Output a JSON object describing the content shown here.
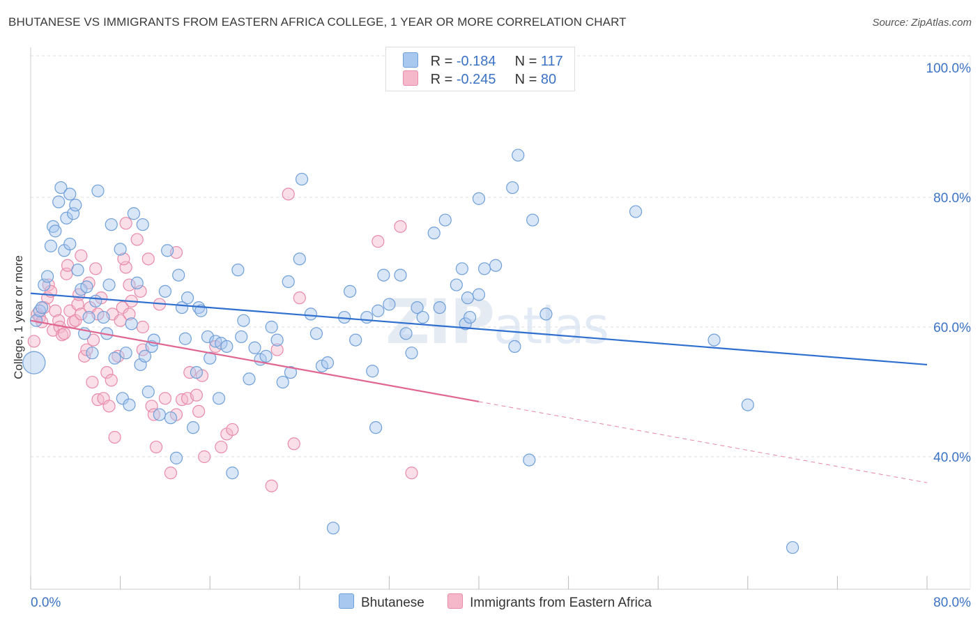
{
  "header": {
    "title": "BHUTANESE VS IMMIGRANTS FROM EASTERN AFRICA COLLEGE, 1 YEAR OR MORE CORRELATION CHART",
    "source": "Source: ZipAtlas.com"
  },
  "watermark": {
    "bold": "ZIP",
    "thin": "atlas"
  },
  "legend": {
    "rows": [
      {
        "r_label": "R = ",
        "r_value": "-0.184",
        "n_label": "N = ",
        "n_value": "117"
      },
      {
        "r_label": "R = ",
        "r_value": "-0.245",
        "n_label": "N = ",
        "n_value": "80"
      }
    ]
  },
  "bottom_legend": [
    "Bhutanese",
    "Immigrants from Eastern Africa"
  ],
  "colors": {
    "blue_fill": "#a9c8ef",
    "blue_stroke": "#6f9fd8",
    "blue_line": "#2f6fcf",
    "pink_fill": "#f5b8cb",
    "pink_stroke": "#e88aa8",
    "pink_line": "#e0668f",
    "tick_label": "#3b72c4"
  },
  "chart_data": {
    "type": "scatter",
    "title": "BHUTANESE VS IMMIGRANTS FROM EASTERN AFRICA COLLEGE, 1 YEAR OR MORE CORRELATION CHART",
    "xlabel": "",
    "ylabel": "College, 1 year or more",
    "xlim": [
      0,
      80
    ],
    "ylim": [
      20,
      100
    ],
    "x_tick_labels": [
      "0.0%",
      "80.0%"
    ],
    "y_ticks": [
      40,
      60,
      80,
      100
    ],
    "y_tick_labels": [
      "40.0%",
      "60.0%",
      "80.0%",
      "100.0%"
    ],
    "grid": "horizontal dashed",
    "legend_position": "top-center",
    "series": [
      {
        "name": "Bhutanese",
        "r": -0.184,
        "n": 117,
        "trend": {
          "x": [
            0,
            80
          ],
          "y": [
            65.2,
            54.2
          ]
        },
        "points": [
          [
            0.3,
            54.5
          ],
          [
            0.5,
            61.0
          ],
          [
            0.8,
            62.5
          ],
          [
            1.0,
            63.0
          ],
          [
            1.2,
            66.5
          ],
          [
            1.5,
            67.8
          ],
          [
            1.8,
            72.5
          ],
          [
            2.0,
            75.5
          ],
          [
            2.2,
            74.8
          ],
          [
            2.5,
            79.3
          ],
          [
            2.7,
            81.5
          ],
          [
            3.0,
            71.8
          ],
          [
            3.2,
            76.8
          ],
          [
            3.5,
            72.8
          ],
          [
            3.5,
            80.5
          ],
          [
            3.8,
            77.5
          ],
          [
            4.0,
            78.8
          ],
          [
            4.2,
            68.8
          ],
          [
            4.5,
            65.8
          ],
          [
            4.8,
            59.0
          ],
          [
            5.0,
            66.2
          ],
          [
            5.2,
            61.5
          ],
          [
            5.5,
            56.0
          ],
          [
            5.8,
            64.0
          ],
          [
            6.0,
            81.0
          ],
          [
            6.5,
            61.5
          ],
          [
            6.8,
            59.0
          ],
          [
            7.0,
            66.5
          ],
          [
            7.2,
            75.8
          ],
          [
            7.5,
            55.2
          ],
          [
            8.0,
            72.0
          ],
          [
            8.2,
            49.0
          ],
          [
            8.5,
            56.0
          ],
          [
            8.8,
            48.0
          ],
          [
            9.0,
            60.5
          ],
          [
            9.2,
            77.5
          ],
          [
            9.5,
            66.8
          ],
          [
            9.8,
            54.2
          ],
          [
            10.0,
            75.8
          ],
          [
            10.2,
            55.5
          ],
          [
            10.5,
            50.0
          ],
          [
            10.8,
            57.0
          ],
          [
            11.0,
            58.0
          ],
          [
            11.5,
            46.5
          ],
          [
            12.0,
            65.5
          ],
          [
            12.2,
            71.8
          ],
          [
            12.5,
            46.0
          ],
          [
            13.0,
            39.8
          ],
          [
            13.2,
            68.0
          ],
          [
            13.5,
            63.0
          ],
          [
            13.8,
            58.2
          ],
          [
            14.0,
            64.5
          ],
          [
            14.5,
            44.5
          ],
          [
            14.8,
            53.0
          ],
          [
            15.0,
            63.0
          ],
          [
            15.2,
            62.5
          ],
          [
            15.8,
            58.5
          ],
          [
            16.0,
            55.2
          ],
          [
            16.5,
            57.8
          ],
          [
            16.8,
            49.0
          ],
          [
            17.0,
            57.5
          ],
          [
            17.5,
            57.0
          ],
          [
            18.0,
            37.5
          ],
          [
            18.5,
            68.8
          ],
          [
            18.8,
            58.5
          ],
          [
            19.0,
            61.0
          ],
          [
            19.5,
            52.0
          ],
          [
            20.0,
            56.8
          ],
          [
            20.5,
            55.0
          ],
          [
            21.0,
            55.5
          ],
          [
            21.5,
            60.0
          ],
          [
            22.0,
            58.0
          ],
          [
            22.5,
            51.5
          ],
          [
            23.0,
            67.0
          ],
          [
            23.2,
            53.0
          ],
          [
            24.0,
            70.5
          ],
          [
            24.2,
            82.8
          ],
          [
            25.0,
            62.0
          ],
          [
            25.5,
            59.0
          ],
          [
            26.0,
            54.0
          ],
          [
            26.5,
            54.5
          ],
          [
            27.0,
            29.0
          ],
          [
            28.0,
            61.5
          ],
          [
            28.5,
            65.5
          ],
          [
            29.0,
            58.0
          ],
          [
            30.0,
            61.5
          ],
          [
            30.5,
            53.2
          ],
          [
            30.8,
            44.5
          ],
          [
            31.0,
            62.5
          ],
          [
            31.5,
            68.0
          ],
          [
            32.0,
            63.5
          ],
          [
            33.0,
            68.0
          ],
          [
            33.5,
            59.0
          ],
          [
            34.0,
            56.0
          ],
          [
            34.5,
            63.0
          ],
          [
            35.0,
            61.5
          ],
          [
            36.0,
            74.5
          ],
          [
            36.5,
            63.0
          ],
          [
            37.0,
            76.5
          ],
          [
            38.0,
            66.5
          ],
          [
            38.5,
            69.0
          ],
          [
            38.8,
            60.5
          ],
          [
            39.0,
            64.5
          ],
          [
            39.2,
            61.5
          ],
          [
            40.0,
            65.0
          ],
          [
            40.0,
            79.8
          ],
          [
            40.5,
            69.0
          ],
          [
            41.5,
            69.5
          ],
          [
            43.0,
            81.5
          ],
          [
            43.2,
            57.0
          ],
          [
            43.5,
            86.5
          ],
          [
            44.5,
            39.5
          ],
          [
            44.8,
            76.5
          ],
          [
            46.0,
            62.0
          ],
          [
            54.0,
            77.8
          ],
          [
            61.0,
            58.0
          ],
          [
            64.0,
            48.0
          ],
          [
            68.0,
            26.0
          ]
        ]
      },
      {
        "name": "Immigrants from Eastern Africa",
        "r": -0.245,
        "n": 80,
        "trend": {
          "x": [
            0,
            40
          ],
          "y": [
            61.0,
            48.5
          ]
        },
        "trend_dashed": {
          "x": [
            40,
            80
          ],
          "y": [
            48.5,
            36.0
          ]
        },
        "points": [
          [
            0.3,
            57.8
          ],
          [
            0.6,
            62.0
          ],
          [
            0.8,
            61.5
          ],
          [
            1.0,
            60.8
          ],
          [
            1.2,
            63.0
          ],
          [
            1.5,
            64.5
          ],
          [
            1.6,
            66.5
          ],
          [
            1.8,
            65.5
          ],
          [
            2.0,
            59.5
          ],
          [
            2.2,
            62.5
          ],
          [
            2.5,
            61.0
          ],
          [
            2.6,
            60.0
          ],
          [
            2.8,
            58.8
          ],
          [
            3.0,
            59.0
          ],
          [
            3.2,
            68.2
          ],
          [
            3.5,
            62.5
          ],
          [
            3.8,
            60.8
          ],
          [
            4.0,
            61.0
          ],
          [
            4.2,
            63.5
          ],
          [
            4.3,
            65.0
          ],
          [
            4.5,
            62.0
          ],
          [
            4.5,
            71.0
          ],
          [
            4.8,
            55.5
          ],
          [
            5.0,
            56.5
          ],
          [
            5.2,
            66.8
          ],
          [
            5.3,
            63.0
          ],
          [
            5.5,
            51.5
          ],
          [
            5.8,
            69.0
          ],
          [
            6.0,
            48.8
          ],
          [
            6.0,
            62.0
          ],
          [
            6.3,
            64.5
          ],
          [
            6.5,
            49.0
          ],
          [
            6.8,
            53.0
          ],
          [
            7.0,
            47.8
          ],
          [
            7.2,
            51.8
          ],
          [
            7.3,
            62.0
          ],
          [
            7.5,
            43.0
          ],
          [
            7.8,
            55.5
          ],
          [
            8.0,
            61.0
          ],
          [
            8.2,
            63.0
          ],
          [
            8.5,
            76.0
          ],
          [
            8.5,
            69.2
          ],
          [
            8.8,
            66.5
          ],
          [
            8.8,
            62.0
          ],
          [
            9.0,
            64.0
          ],
          [
            9.5,
            73.5
          ],
          [
            9.8,
            65.5
          ],
          [
            10.0,
            56.5
          ],
          [
            10.0,
            60.0
          ],
          [
            10.5,
            70.5
          ],
          [
            10.8,
            47.8
          ],
          [
            11.0,
            46.5
          ],
          [
            11.2,
            41.5
          ],
          [
            11.5,
            63.5
          ],
          [
            12.0,
            49.0
          ],
          [
            12.5,
            37.5
          ],
          [
            13.0,
            46.5
          ],
          [
            13.0,
            71.5
          ],
          [
            13.5,
            48.8
          ],
          [
            14.0,
            49.0
          ],
          [
            14.2,
            53.0
          ],
          [
            14.8,
            49.5
          ],
          [
            15.0,
            47.0
          ],
          [
            15.5,
            40.0
          ],
          [
            16.5,
            57.0
          ],
          [
            17.0,
            41.5
          ],
          [
            17.5,
            43.5
          ],
          [
            18.0,
            44.2
          ],
          [
            21.5,
            35.5
          ],
          [
            22.0,
            56.5
          ],
          [
            23.5,
            42.0
          ],
          [
            24.0,
            64.5
          ],
          [
            23.0,
            80.5
          ],
          [
            31.0,
            73.2
          ],
          [
            33.0,
            75.5
          ],
          [
            34.0,
            37.5
          ],
          [
            8.3,
            70.5
          ],
          [
            3.3,
            69.5
          ],
          [
            15.3,
            52.5
          ],
          [
            5.6,
            58.0
          ]
        ]
      }
    ]
  }
}
